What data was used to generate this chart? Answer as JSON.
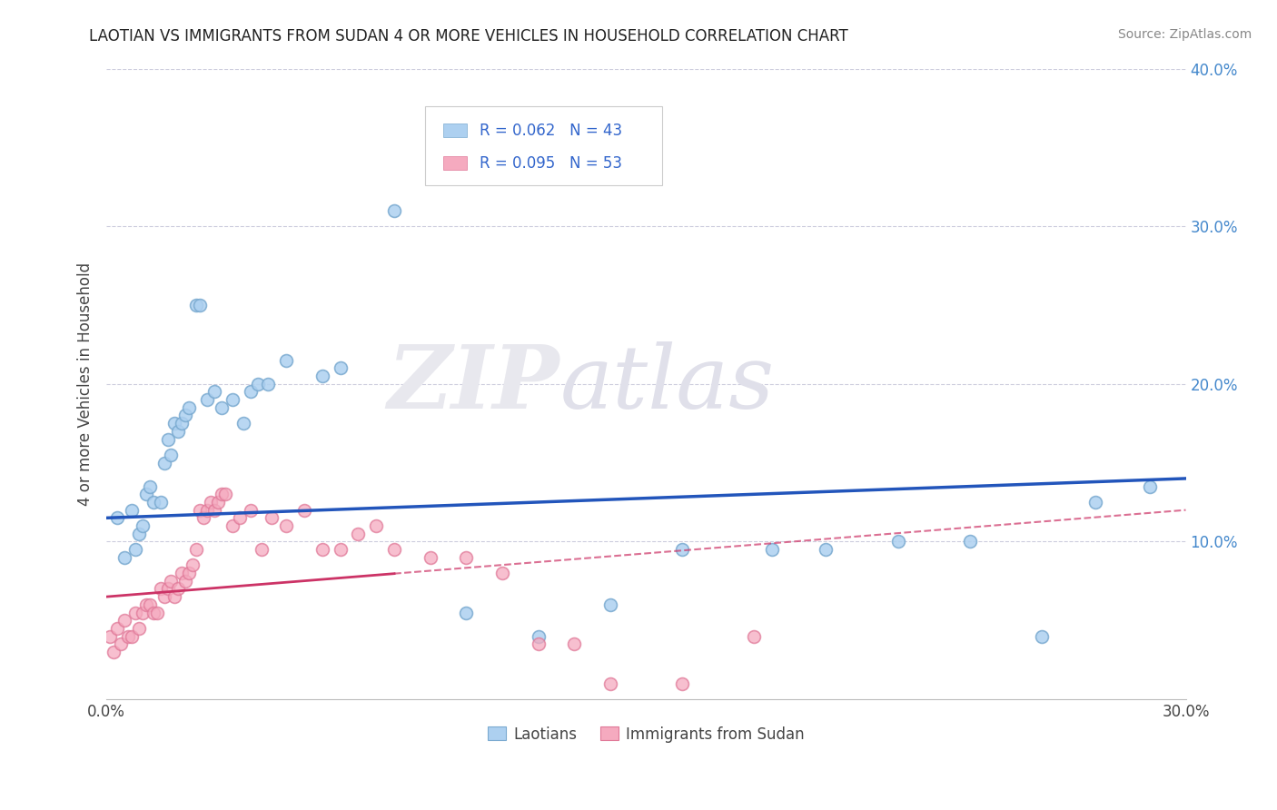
{
  "title": "LAOTIAN VS IMMIGRANTS FROM SUDAN 4 OR MORE VEHICLES IN HOUSEHOLD CORRELATION CHART",
  "source": "Source: ZipAtlas.com",
  "ylabel": "4 or more Vehicles in Household",
  "xlim": [
    0.0,
    0.3
  ],
  "ylim": [
    0.0,
    0.4
  ],
  "legend_labels": [
    "Laotians",
    "Immigrants from Sudan"
  ],
  "blue_R": "R = 0.062",
  "blue_N": "N = 43",
  "pink_R": "R = 0.095",
  "pink_N": "N = 53",
  "blue_color": "#ADD0F0",
  "pink_color": "#F5AABF",
  "blue_edge_color": "#7AAAD0",
  "pink_edge_color": "#E07898",
  "blue_line_color": "#2255BB",
  "pink_line_color": "#CC3366",
  "watermark_zip": "ZIP",
  "watermark_atlas": "atlas",
  "blue_scatter_x": [
    0.003,
    0.005,
    0.007,
    0.008,
    0.009,
    0.01,
    0.011,
    0.012,
    0.013,
    0.015,
    0.016,
    0.017,
    0.018,
    0.019,
    0.02,
    0.021,
    0.022,
    0.023,
    0.025,
    0.026,
    0.028,
    0.03,
    0.032,
    0.035,
    0.038,
    0.04,
    0.042,
    0.045,
    0.05,
    0.06,
    0.065,
    0.08,
    0.1,
    0.12,
    0.14,
    0.16,
    0.185,
    0.2,
    0.22,
    0.24,
    0.26,
    0.275,
    0.29
  ],
  "blue_scatter_y": [
    0.115,
    0.09,
    0.12,
    0.095,
    0.105,
    0.11,
    0.13,
    0.135,
    0.125,
    0.125,
    0.15,
    0.165,
    0.155,
    0.175,
    0.17,
    0.175,
    0.18,
    0.185,
    0.25,
    0.25,
    0.19,
    0.195,
    0.185,
    0.19,
    0.175,
    0.195,
    0.2,
    0.2,
    0.215,
    0.205,
    0.21,
    0.31,
    0.055,
    0.04,
    0.06,
    0.095,
    0.095,
    0.095,
    0.1,
    0.1,
    0.04,
    0.125,
    0.135
  ],
  "pink_scatter_x": [
    0.001,
    0.002,
    0.003,
    0.004,
    0.005,
    0.006,
    0.007,
    0.008,
    0.009,
    0.01,
    0.011,
    0.012,
    0.013,
    0.014,
    0.015,
    0.016,
    0.017,
    0.018,
    0.019,
    0.02,
    0.021,
    0.022,
    0.023,
    0.024,
    0.025,
    0.026,
    0.027,
    0.028,
    0.029,
    0.03,
    0.031,
    0.032,
    0.033,
    0.035,
    0.037,
    0.04,
    0.043,
    0.046,
    0.05,
    0.055,
    0.06,
    0.065,
    0.07,
    0.075,
    0.08,
    0.09,
    0.1,
    0.11,
    0.12,
    0.13,
    0.14,
    0.16,
    0.18
  ],
  "pink_scatter_y": [
    0.04,
    0.03,
    0.045,
    0.035,
    0.05,
    0.04,
    0.04,
    0.055,
    0.045,
    0.055,
    0.06,
    0.06,
    0.055,
    0.055,
    0.07,
    0.065,
    0.07,
    0.075,
    0.065,
    0.07,
    0.08,
    0.075,
    0.08,
    0.085,
    0.095,
    0.12,
    0.115,
    0.12,
    0.125,
    0.12,
    0.125,
    0.13,
    0.13,
    0.11,
    0.115,
    0.12,
    0.095,
    0.115,
    0.11,
    0.12,
    0.095,
    0.095,
    0.105,
    0.11,
    0.095,
    0.09,
    0.09,
    0.08,
    0.035,
    0.035,
    0.01,
    0.01,
    0.04
  ]
}
